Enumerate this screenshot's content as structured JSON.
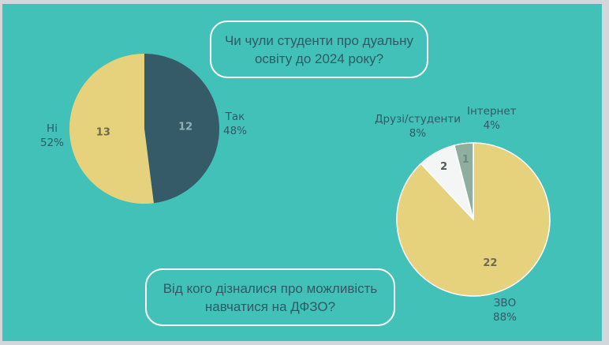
{
  "chart_data": [
    {
      "type": "pie",
      "title": "Чи чули студенти про дуальну освіту до 2024 року?",
      "slices": [
        {
          "label": "Так",
          "value": 12,
          "percent": "48%",
          "color": "#355A68",
          "value_color": "#8fb0b5"
        },
        {
          "label": "Ні",
          "value": 13,
          "percent": "52%",
          "color": "#E6D27C",
          "value_color": "#6f6a4d"
        }
      ]
    },
    {
      "type": "pie",
      "title": "Від кого дізналися про можливість навчатися на ДФЗО?",
      "slices": [
        {
          "label": "ЗВО",
          "value": 22,
          "percent": "88%",
          "color": "#E6D27C",
          "value_color": "#6f6a4d"
        },
        {
          "label": "Друзі/студенти",
          "value": 2,
          "percent": "8%",
          "color": "#F4F5F5",
          "value_color": "#4f5b58"
        },
        {
          "label": "Інтернет",
          "value": 1,
          "percent": "4%",
          "color": "#8FAE9F",
          "value_color": "#6f8a80"
        }
      ]
    }
  ]
}
